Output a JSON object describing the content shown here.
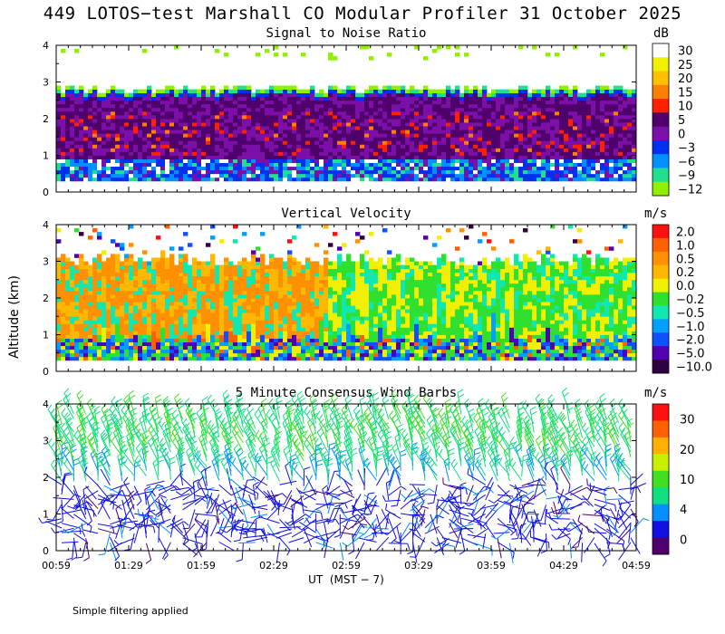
{
  "title": "449 LOTOS−test Marshall CO Modular Profiler 31 October 2025",
  "footer": "Simple filtering applied",
  "ylabel": "Altitude (km)",
  "xlabel": "UT  (MST − 7)",
  "chart_data": [
    {
      "type": "heatmap",
      "title": "Signal to Noise Ratio",
      "unit": "dB",
      "x_ticks": [
        "00:59",
        "01:29",
        "01:59",
        "02:29",
        "02:59",
        "03:29",
        "03:59",
        "04:29",
        "04:59"
      ],
      "y_ticks": [
        "0",
        "1",
        "2",
        "3",
        "4"
      ],
      "ylim": [
        0,
        4
      ],
      "colorbar": {
        "labels": [
          "30",
          "25",
          "20",
          "15",
          "10",
          "5",
          "0",
          "−3",
          "−6",
          "−9",
          "−12"
        ],
        "colors": [
          "#ffffff",
          "#f0f000",
          "#ffc000",
          "#ff8000",
          "#ff2000",
          "#50006a",
          "#7c0fa8",
          "#0030f0",
          "#0090ff",
          "#20e090",
          "#90f000"
        ]
      },
      "features": {
        "signal_top_km": 2.8,
        "enhanced_layer_km": [
          1.0,
          2.0
        ]
      }
    },
    {
      "type": "heatmap",
      "title": "Vertical Velocity",
      "unit": "m/s",
      "x_ticks": [
        "00:59",
        "01:29",
        "01:59",
        "02:29",
        "02:59",
        "03:29",
        "03:59",
        "04:29",
        "04:59"
      ],
      "y_ticks": [
        "0",
        "1",
        "2",
        "3",
        "4"
      ],
      "ylim": [
        0,
        4
      ],
      "colorbar": {
        "labels": [
          "2.0",
          "1.0",
          "0.5",
          "0.2",
          "0.0",
          "−0.2",
          "−0.5",
          "−1.0",
          "−2.0",
          "−5.0",
          "−10.0"
        ],
        "colors": [
          "#ff1010",
          "#ff6000",
          "#ff9000",
          "#ffb800",
          "#f0f000",
          "#30e030",
          "#10e8b0",
          "#00a0ff",
          "#1050ff",
          "#5000b0",
          "#300040"
        ]
      }
    },
    {
      "type": "wind_barbs",
      "title": "5 Minute Consensus Wind Barbs",
      "unit": "m/s",
      "x_ticks": [
        "00:59",
        "01:29",
        "01:59",
        "02:29",
        "02:59",
        "03:29",
        "03:59",
        "04:29",
        "04:59"
      ],
      "y_ticks": [
        "0",
        "1",
        "2",
        "3",
        "4"
      ],
      "ylim": [
        0,
        4
      ],
      "colorbar": {
        "labels": [
          "30",
          "20",
          "10",
          "4",
          "0"
        ],
        "colors": [
          "#ff1010",
          "#ff6000",
          "#ffb000",
          "#c8f000",
          "#40e020",
          "#10e080",
          "#0090ff",
          "#1010e0",
          "#50006a"
        ]
      },
      "features": {
        "low_level_speed": "light (0–4 m/s) below ~1.8 km",
        "upper_speed": "10–15 m/s from ~2.3 to 3.8 km"
      }
    }
  ]
}
